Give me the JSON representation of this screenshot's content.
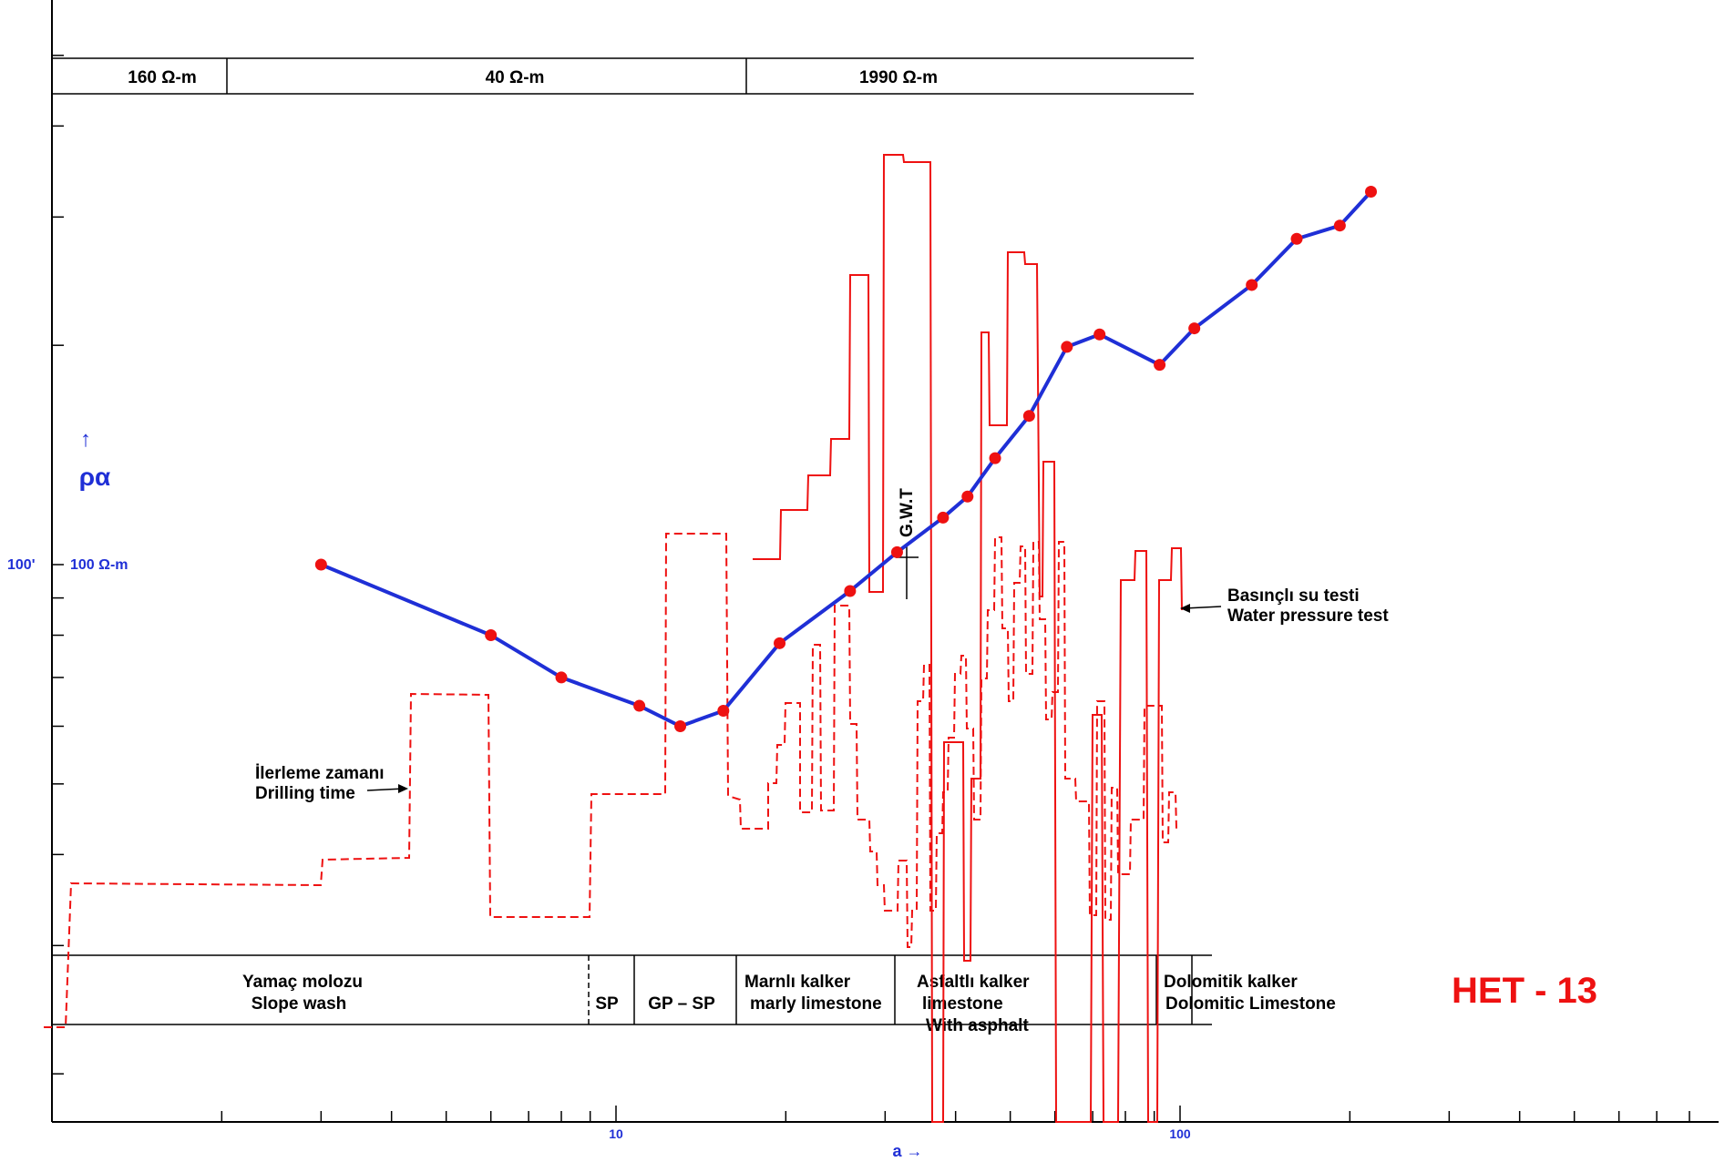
{
  "chart_data": {
    "type": "line",
    "title": "HET - 13",
    "xlabel": "a →",
    "ylabel_arrow": "↑",
    "ylabel": "ρα",
    "x_scale": "log",
    "x_ticks": [
      "10",
      "100"
    ],
    "y_ticks": [
      "100'",
      "100 Ω-m"
    ],
    "layers": [
      "160  Ω-m",
      "40 Ω-m",
      "1990 Ω-m"
    ],
    "lithology": [
      {
        "label": "Yamaç molozu",
        "label2": "Slope wash"
      },
      {
        "label": "SP",
        "label2": ""
      },
      {
        "label": "GP – SP",
        "label2": ""
      },
      {
        "label": "Marnlı  kalker",
        "label2": "marly limestone"
      },
      {
        "label": "Asfaltlı kalker",
        "label2": "limestone",
        "label3": "With asphalt"
      },
      {
        "label": "Dolomitik  kalker",
        "label2": "Dolomitic Limestone"
      }
    ],
    "annotations": {
      "gwt": "G.W.T",
      "drilling_tr": "İlerleme zamanı",
      "drilling_en": "Drilling time",
      "pressure_tr": "Basınçlı  su testi",
      "pressure_en": "Water pressure test"
    },
    "series": [
      {
        "color": "#1f2fd6",
        "x": [
          3,
          6,
          8,
          11,
          13,
          15.5,
          19.5,
          26,
          31.5,
          38,
          42,
          47,
          54,
          63,
          72,
          92,
          106,
          134,
          161,
          192,
          218
        ],
        "y": [
          100,
          80,
          70,
          64,
          60,
          63,
          78,
          92,
          104,
          116,
          124,
          140,
          160,
          199,
          207,
          188,
          211,
          242,
          280,
          292,
          325
        ]
      }
    ],
    "colors": {
      "curve": "#1f2fd6",
      "points": "#ee1111",
      "logs": "#ee1111"
    }
  }
}
